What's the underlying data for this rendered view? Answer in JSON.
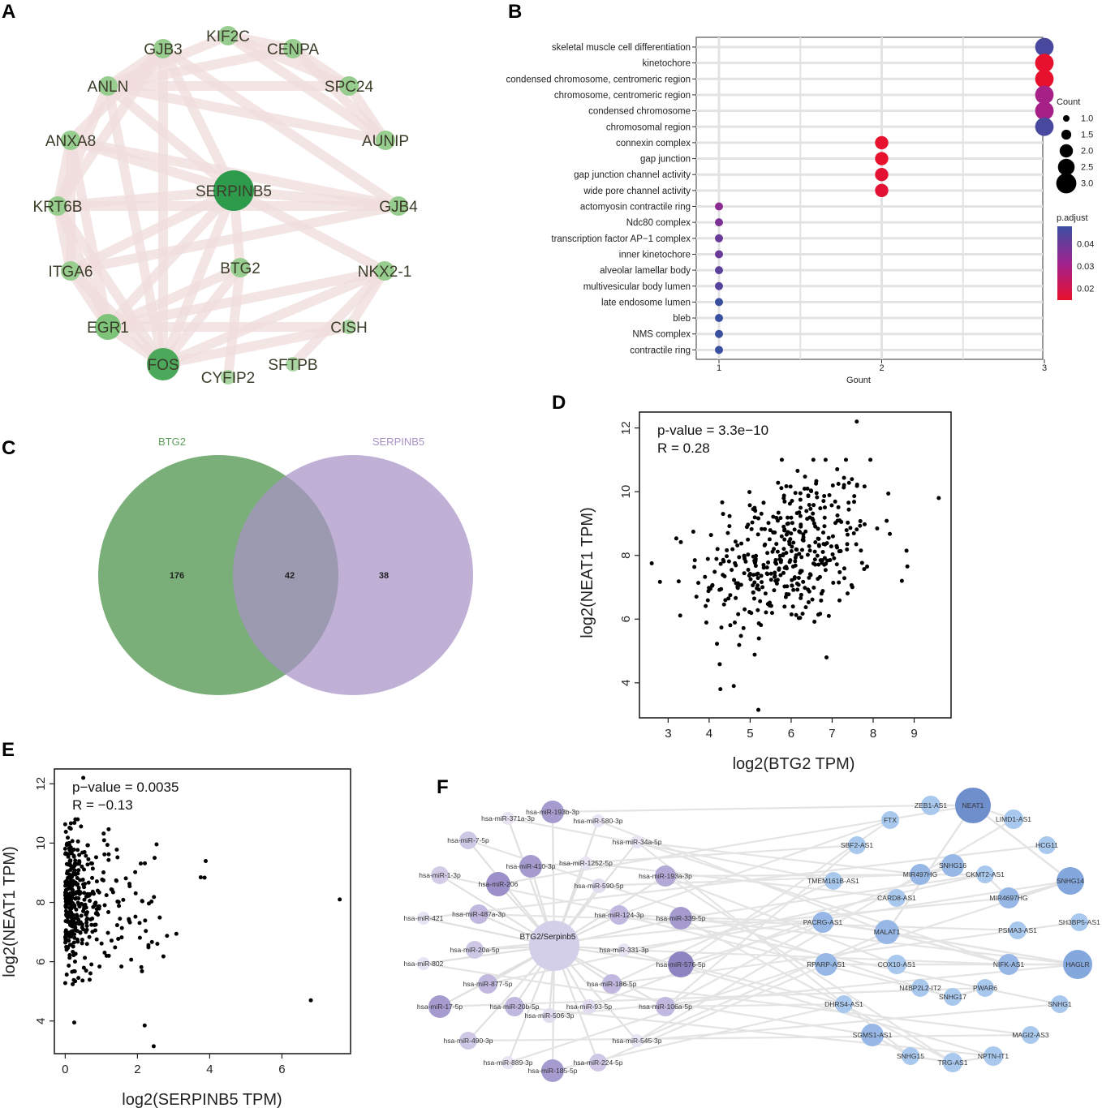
{
  "panels": {
    "a": "A",
    "b": "B",
    "c": "C",
    "d": "D",
    "e": "E",
    "f": "F"
  },
  "chart_data": [
    {
      "panel": "A",
      "type": "network",
      "hub": "SERPINB5",
      "nodes": [
        {
          "name": "KIF2C",
          "emphasis": 1
        },
        {
          "name": "CENPA",
          "emphasis": 1
        },
        {
          "name": "SPC24",
          "emphasis": 1
        },
        {
          "name": "AUNIP",
          "emphasis": 1
        },
        {
          "name": "GJB4",
          "emphasis": 1
        },
        {
          "name": "NKX2-1",
          "emphasis": 1
        },
        {
          "name": "CISH",
          "emphasis": 0
        },
        {
          "name": "SFTPB",
          "emphasis": 0
        },
        {
          "name": "CYFIP2",
          "emphasis": 0
        },
        {
          "name": "FOS",
          "emphasis": 3
        },
        {
          "name": "EGR1",
          "emphasis": 2
        },
        {
          "name": "ITGA6",
          "emphasis": 1
        },
        {
          "name": "KRT6B",
          "emphasis": 1
        },
        {
          "name": "ANXA8",
          "emphasis": 1
        },
        {
          "name": "ANLN",
          "emphasis": 1
        },
        {
          "name": "GJB3",
          "emphasis": 1
        },
        {
          "name": "SERPINB5",
          "emphasis": 4
        },
        {
          "name": "BTG2",
          "emphasis": 1
        }
      ],
      "edges": [
        [
          "SERPINB5",
          "FOS"
        ],
        [
          "SERPINB5",
          "EGR1"
        ],
        [
          "SERPINB5",
          "KRT6B"
        ],
        [
          "SERPINB5",
          "ANXA8"
        ],
        [
          "SERPINB5",
          "GJB4"
        ],
        [
          "SERPINB5",
          "BTG2"
        ],
        [
          "SERPINB5",
          "ITGA6"
        ],
        [
          "SERPINB5",
          "GJB3"
        ],
        [
          "SERPINB5",
          "NKX2-1"
        ],
        [
          "SERPINB5",
          "ANLN"
        ],
        [
          "FOS",
          "EGR1"
        ],
        [
          "FOS",
          "BTG2"
        ],
        [
          "FOS",
          "NKX2-1"
        ],
        [
          "FOS",
          "CISH"
        ],
        [
          "FOS",
          "ITGA6"
        ],
        [
          "FOS",
          "KRT6B"
        ],
        [
          "FOS",
          "ANLN"
        ],
        [
          "FOS",
          "GJB3"
        ],
        [
          "EGR1",
          "BTG2"
        ],
        [
          "EGR1",
          "ITGA6"
        ],
        [
          "EGR1",
          "CISH"
        ],
        [
          "EGR1",
          "NKX2-1"
        ],
        [
          "EGR1",
          "ANXA8"
        ],
        [
          "EGR1",
          "KRT6B"
        ],
        [
          "KIF2C",
          "CENPA"
        ],
        [
          "KIF2C",
          "SPC24"
        ],
        [
          "KIF2C",
          "ANLN"
        ],
        [
          "KIF2C",
          "AUNIP"
        ],
        [
          "CENPA",
          "SPC24"
        ],
        [
          "CENPA",
          "ANLN"
        ],
        [
          "CENPA",
          "AUNIP"
        ],
        [
          "SPC24",
          "ANLN"
        ],
        [
          "SPC24",
          "AUNIP"
        ],
        [
          "AUNIP",
          "ANLN"
        ],
        [
          "GJB3",
          "GJB4"
        ],
        [
          "GJB3",
          "ANLN"
        ],
        [
          "ANXA8",
          "KRT6B"
        ],
        [
          "ANXA8",
          "ITGA6"
        ],
        [
          "KRT6B",
          "ITGA6"
        ],
        [
          "KRT6B",
          "GJB4"
        ],
        [
          "ITGA6",
          "GJB4"
        ],
        [
          "ANLN",
          "KRT6B"
        ],
        [
          "ANXA8",
          "GJB4"
        ],
        [
          "BTG2",
          "CYFIP2"
        ],
        [
          "NKX2-1",
          "SFTPB"
        ],
        [
          "NKX2-1",
          "CISH"
        ],
        [
          "GJB3",
          "KRT6B"
        ],
        [
          "ANXA8",
          "GJB3"
        ]
      ]
    },
    {
      "panel": "B",
      "type": "scatter",
      "title": "",
      "xlabel": "Gount",
      "ylabel": "",
      "xlim": [
        0.95,
        3.0
      ],
      "xticks": [
        "1",
        "2",
        "3"
      ],
      "terms": [
        {
          "term": "skeletal muscle cell differentiation",
          "count": 3,
          "padj": 0.045
        },
        {
          "term": "kinetochore",
          "count": 3,
          "padj": 0.017
        },
        {
          "term": "condensed chromosome, centromeric region",
          "count": 3,
          "padj": 0.017
        },
        {
          "term": "chromosome, centromeric region",
          "count": 3,
          "padj": 0.031
        },
        {
          "term": "condensed chromosome",
          "count": 3,
          "padj": 0.031
        },
        {
          "term": "chromosomal region",
          "count": 3,
          "padj": 0.045
        },
        {
          "term": "connexin complex",
          "count": 2,
          "padj": 0.017
        },
        {
          "term": "gap junction",
          "count": 2,
          "padj": 0.017
        },
        {
          "term": "gap junction channel activity",
          "count": 2,
          "padj": 0.018
        },
        {
          "term": "wide pore channel activity",
          "count": 2,
          "padj": 0.018
        },
        {
          "term": "actomyosin contractile ring",
          "count": 1,
          "padj": 0.035
        },
        {
          "term": "Ndc80 complex",
          "count": 1,
          "padj": 0.037
        },
        {
          "term": "transcription factor AP−1 complex",
          "count": 1,
          "padj": 0.04
        },
        {
          "term": "inner kinetochore",
          "count": 1,
          "padj": 0.04
        },
        {
          "term": "alveolar lamellar body",
          "count": 1,
          "padj": 0.042
        },
        {
          "term": "multivesicular body lumen",
          "count": 1,
          "padj": 0.043
        },
        {
          "term": "late endosome lumen",
          "count": 1,
          "padj": 0.047
        },
        {
          "term": "bleb",
          "count": 1,
          "padj": 0.047
        },
        {
          "term": "NMS complex",
          "count": 1,
          "padj": 0.047
        },
        {
          "term": "contractile ring",
          "count": 1,
          "padj": 0.047
        }
      ],
      "legend": {
        "size_title": "Count",
        "size_values": [
          "1.0",
          "1.5",
          "2.0",
          "2.5",
          "3.0"
        ],
        "color_title": "p.adjust",
        "color_ticks": [
          "0.04",
          "0.03",
          "0.02"
        ],
        "color_low": "#e8112d",
        "color_mid": "#a0228f",
        "color_high": "#3b4fa0"
      }
    },
    {
      "panel": "C",
      "type": "venn",
      "sets": [
        {
          "name": "BTG2",
          "only": "176",
          "color": "#5e9e5c"
        },
        {
          "name": "SERPINB5",
          "only": "38",
          "color": "#a792c6"
        }
      ],
      "intersection": "42"
    },
    {
      "panel": "D",
      "type": "scatter",
      "annotation": [
        "p-value = 3.3e−10",
        "R = 0.28"
      ],
      "xlabel": "log2(BTG2 TPM)",
      "ylabel": "log2(NEAT1 TPM)",
      "xlim": [
        2.3,
        9.9
      ],
      "ylim": [
        2.9,
        12.5
      ],
      "xticks": [
        "3",
        "4",
        "5",
        "6",
        "7",
        "8",
        "9"
      ],
      "yticks": [
        "4",
        "6",
        "8",
        "10",
        "12"
      ],
      "n_points": 420,
      "mean_x": 5.9,
      "sd_x": 1.05,
      "mean_y": 8.05,
      "sd_y": 1.3,
      "r": 0.28,
      "extreme_points": [
        [
          7.6,
          12.2
        ],
        [
          9.6,
          9.8
        ],
        [
          2.6,
          7.75
        ],
        [
          5.2,
          3.15
        ],
        [
          8.7,
          7.2
        ],
        [
          4.6,
          3.9
        ]
      ]
    },
    {
      "panel": "E",
      "type": "scatter",
      "annotation": [
        "p−value = 0.0035",
        "R = −0.13"
      ],
      "xlabel": "log2(SERPINB5 TPM)",
      "ylabel": "log2(NEAT1 TPM)",
      "xlim": [
        -0.3,
        7.9
      ],
      "ylim": [
        2.9,
        12.5
      ],
      "xticks": [
        "0",
        "2",
        "4",
        "6"
      ],
      "yticks": [
        "4",
        "6",
        "8",
        "10",
        "12"
      ],
      "n_points": 420,
      "r": -0.13,
      "extreme_points": [
        [
          0.5,
          12.2
        ],
        [
          7.6,
          8.1
        ],
        [
          2.45,
          3.15
        ],
        [
          6.8,
          4.7
        ],
        [
          0.25,
          3.95
        ],
        [
          2.2,
          3.85
        ]
      ]
    },
    {
      "panel": "F",
      "type": "network",
      "center": "BTG2/Serpinb5",
      "mirnas": [
        "hsa-miR-193b-3p",
        "hsa-miR-371a-3p",
        "hsa-miR-580-3p",
        "hsa-miR-7-5p",
        "hsa-miR-34a-5p",
        "hsa-miR-410-3p",
        "hsa-miR-1252-5p",
        "hsa-miR-193a-3p",
        "hsa-miR-1-3p",
        "hsa-miR-206",
        "hsa-miR-590-5p",
        "hsa-miR-487a-3p",
        "hsa-miR-124-3p",
        "hsa-miR-339-5p",
        "hsa-miR-421",
        "hsa-miR-20a-5p",
        "hsa-miR-331-3p",
        "hsa-miR-802",
        "hsa-miR-576-5p",
        "hsa-miR-877-5p",
        "hsa-miR-186-5p",
        "hsa-miR-17-5p",
        "hsa-miR-20b-5p",
        "hsa-miR-93-5p",
        "hsa-miR-106a-5p",
        "hsa-miR-506-3p",
        "hsa-miR-490-3p",
        "hsa-miR-545-3p",
        "hsa-miR-889-3p",
        "hsa-miR-224-5p",
        "hsa-miR-185-5p"
      ],
      "lncrnas": [
        "ZEB1-AS1",
        "NEAT1",
        "FTX",
        "LIMD1-AS1",
        "SBF2-AS1",
        "HCG11",
        "SNHG16",
        "TMEM161B-AS1",
        "MIR497HG",
        "CKMT2-AS1",
        "SNHG14",
        "CARD8-AS1",
        "MIR4697HG",
        "PACRG-AS1",
        "MALAT1",
        "PSMA3-AS1",
        "SH3BP5-AS1",
        "RPARP-AS1",
        "COX10-AS1",
        "NIFK-AS1",
        "HAGLR",
        "N4BP2L2-IT2",
        "SNHG17",
        "PWAR6",
        "DHRS4-AS1",
        "SNHG1",
        "SGMS1-AS1",
        "MAGI2-AS3",
        "SNHG15",
        "TRG-AS1",
        "NPTN-IT1"
      ]
    }
  ]
}
